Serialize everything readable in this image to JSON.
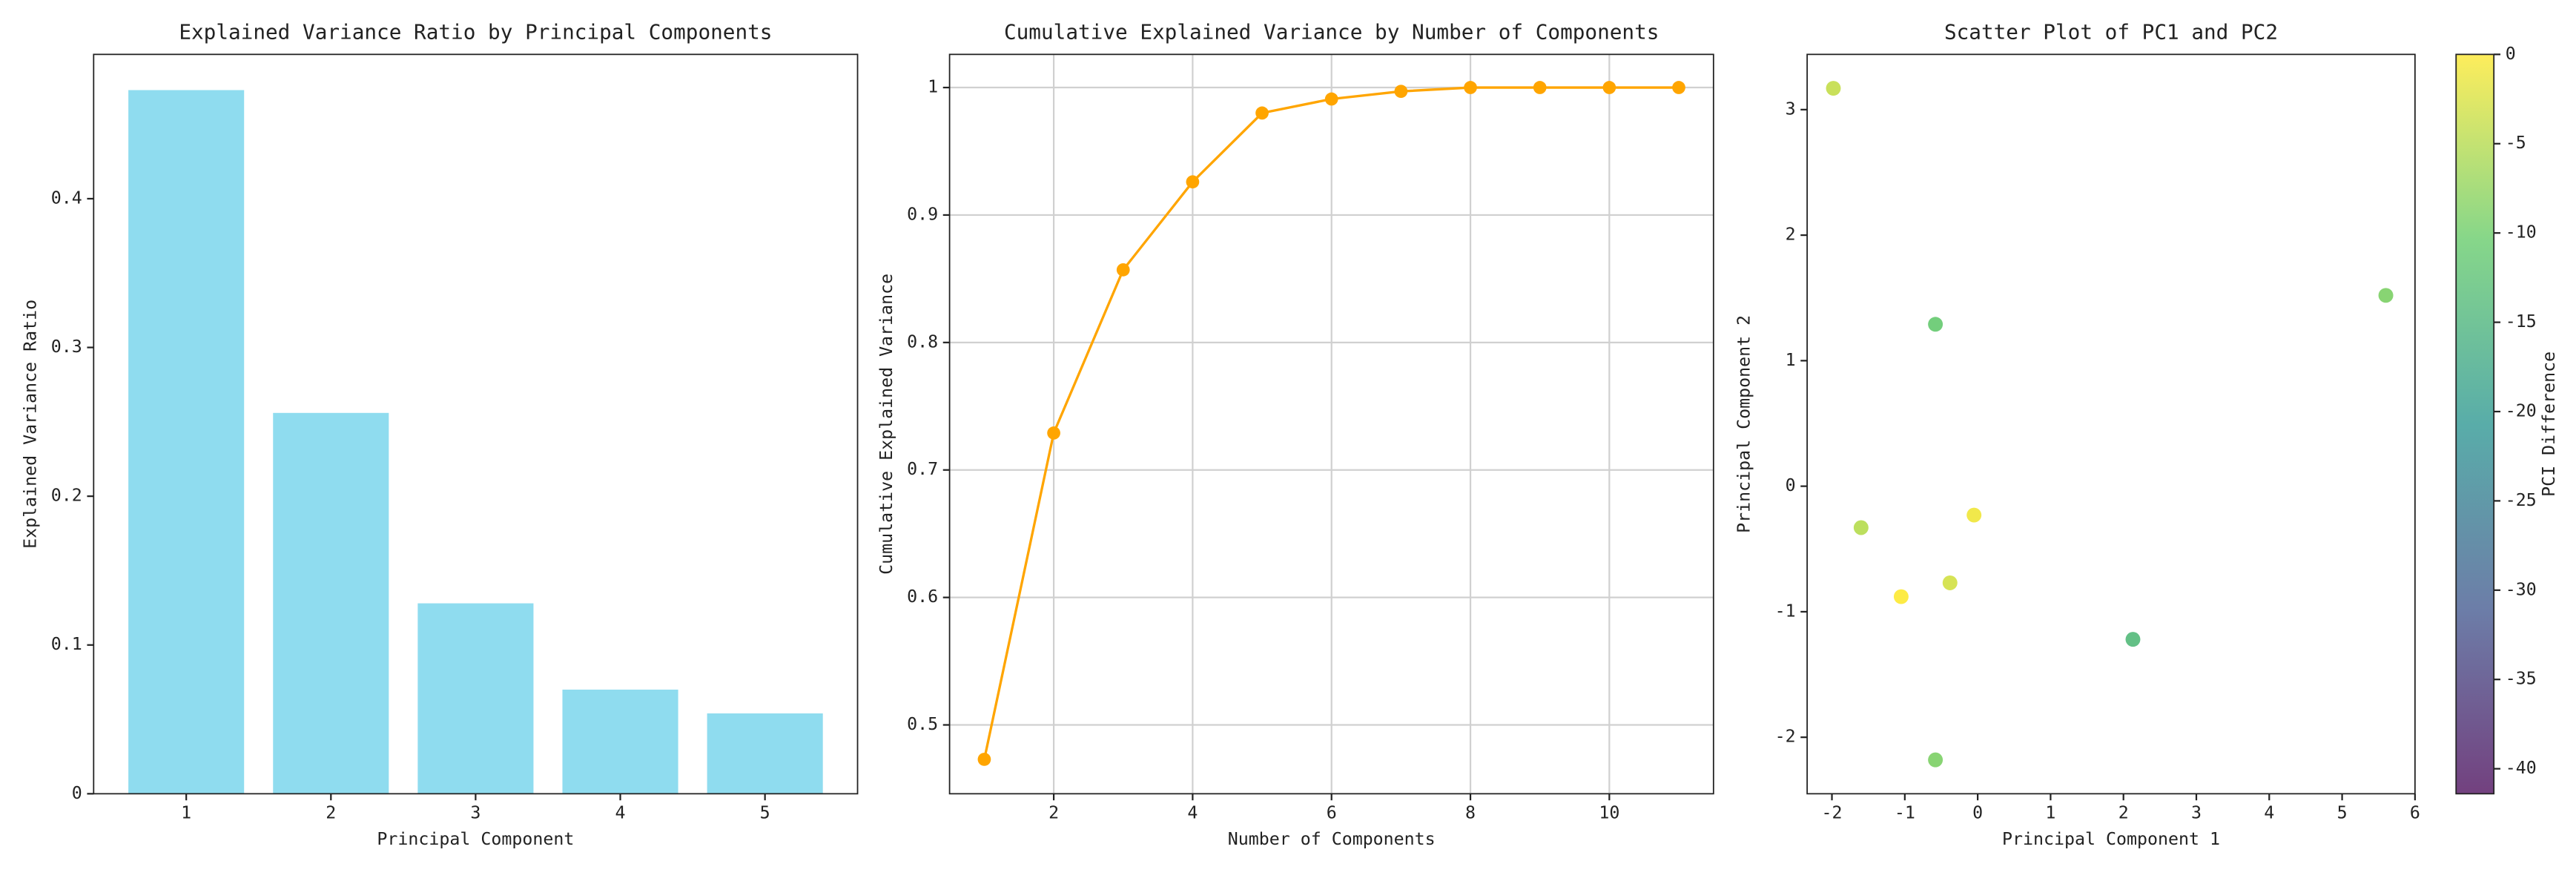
{
  "chart_data": [
    {
      "type": "bar",
      "title": "Explained Variance Ratio by Principal Components",
      "xlabel": "Principal Component",
      "ylabel": "Explained Variance Ratio",
      "x": [
        1,
        2,
        3,
        4,
        5
      ],
      "values": [
        0.473,
        0.256,
        0.128,
        0.07,
        0.054
      ],
      "color": "#8fdcef",
      "xlim": [
        0.36,
        5.64
      ],
      "xticks": [
        1,
        2,
        3,
        4,
        5
      ],
      "ylim": [
        0,
        0.497
      ],
      "yticks": [
        0.0,
        0.1,
        0.2,
        0.3,
        0.4
      ],
      "grid": false
    },
    {
      "type": "line",
      "title": "Cumulative Explained Variance by Number of Components",
      "xlabel": "Number of Components",
      "ylabel": "Cumulative Explained Variance",
      "x": [
        1,
        2,
        3,
        4,
        5,
        6,
        7,
        8,
        9,
        10,
        11
      ],
      "values": [
        0.473,
        0.729,
        0.857,
        0.926,
        0.98,
        0.991,
        0.997,
        1.0,
        1.0,
        1.0,
        1.0
      ],
      "color": "#ffa500",
      "xlim": [
        0.5,
        11.5
      ],
      "xticks": [
        2,
        4,
        6,
        8,
        10
      ],
      "ylim": [
        0.446,
        1.026
      ],
      "yticks": [
        0.5,
        0.6,
        0.7,
        0.8,
        0.9,
        1.0
      ],
      "grid": true
    },
    {
      "type": "scatter",
      "title": "Scatter Plot of PC1 and PC2",
      "xlabel": "Principal Component 1",
      "ylabel": "Principal Component 2",
      "x": [
        -1.98,
        5.6,
        -0.58,
        -1.6,
        -0.05,
        -1.05,
        -0.38,
        2.13,
        -0.58
      ],
      "values": [
        3.17,
        1.52,
        1.29,
        -0.33,
        -0.23,
        -0.88,
        -0.77,
        -1.22,
        -2.18
      ],
      "color_values": [
        -4,
        -9,
        -11,
        -5,
        -1,
        0,
        -3,
        -14,
        -9
      ],
      "colormap": "viridis",
      "xlim": [
        -2.34,
        6.0
      ],
      "xticks": [
        -2,
        -1,
        0,
        1,
        2,
        3,
        4,
        5,
        6
      ],
      "ylim": [
        -2.45,
        3.44
      ],
      "yticks": [
        -2,
        -1,
        0,
        1,
        2,
        3
      ],
      "grid": false,
      "colorbar": {
        "label": "PCI Difference",
        "lim": [
          -41.4,
          0
        ],
        "ticks": [
          0,
          -5,
          -10,
          -15,
          -20,
          -25,
          -30,
          -35,
          -40
        ]
      }
    }
  ]
}
